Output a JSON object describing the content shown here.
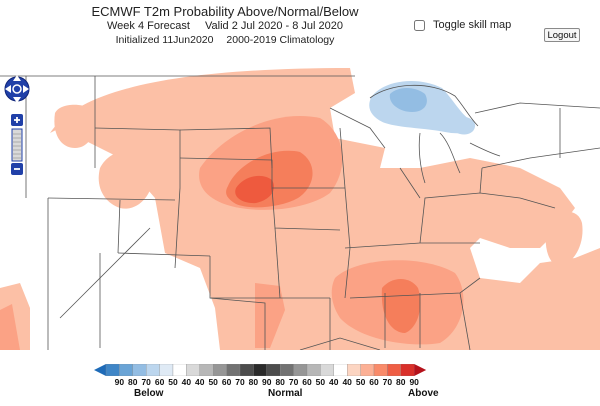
{
  "header": {
    "title": "ECMWF T2m Probability Above/Normal/Below",
    "forecast": "Week 4 Forecast",
    "valid": "Valid 2 Jul 2020 - 8 Jul 2020",
    "initialized": "Initialized 11Jun2020",
    "climatology": "2000-2019 Climatology"
  },
  "controls": {
    "toggle_skill_label": "Toggle skill map",
    "logout_label": "Logout"
  },
  "legend": {
    "labels": [
      "90",
      "80",
      "70",
      "60",
      "50",
      "40",
      "40",
      "50",
      "60",
      "70",
      "80",
      "90",
      "80",
      "70",
      "60",
      "50",
      "40",
      "40",
      "50",
      "60",
      "70",
      "80",
      "90"
    ],
    "colors": [
      "#1e6bb8",
      "#3f86c7",
      "#6aa4d6",
      "#93bde3",
      "#bcd6ee",
      "#dfeaf5",
      "#ffffff",
      "#d9d9d9",
      "#b7b7b7",
      "#969696",
      "#727272",
      "#4d4d4d",
      "#2b2b2b",
      "#4d4d4d",
      "#727272",
      "#969696",
      "#b7b7b7",
      "#d9d9d9",
      "#ffffff",
      "#fcd5c2",
      "#fcb095",
      "#f98b6a",
      "#ef5e45",
      "#d9302a",
      "#b5121b"
    ],
    "below_label": "Below",
    "normal_label": "Normal",
    "above_label": "Above"
  },
  "map": {
    "colors": {
      "above_40": "#fcc0a6",
      "above_50": "#fba285",
      "above_60": "#f57e5b",
      "above_70": "#ee5a3e",
      "below_40": "#bcd6ee",
      "below_50": "#93bde3",
      "land": "#ffffff",
      "border": "#555555"
    }
  }
}
